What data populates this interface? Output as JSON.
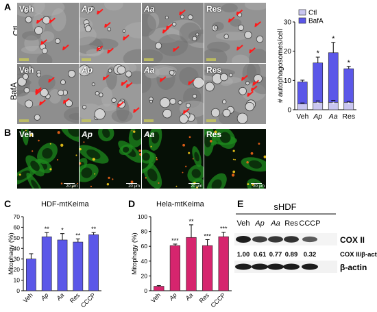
{
  "panels": {
    "A": "A",
    "B": "B",
    "C": "C",
    "D": "D",
    "E": "E"
  },
  "em_grid": {
    "row_labels": [
      "Ctl",
      "BafA"
    ],
    "col_labels": [
      "Veh",
      "Ap",
      "Aa",
      "Res"
    ],
    "col_italic": [
      false,
      true,
      true,
      false
    ]
  },
  "fluor_row": {
    "tiles": [
      "Veh",
      "Ap",
      "Aa",
      "Res"
    ],
    "tile_italic": [
      false,
      true,
      true,
      false
    ],
    "scale_text": "20 μm"
  },
  "colors": {
    "ctl": "#c9c6f0",
    "bafa": "#5b57e8",
    "panel_c": "#5b57e8",
    "panel_d": "#d6256e"
  },
  "chart_data": [
    {
      "type": "bar",
      "id": "A-right",
      "ylabel": "# autophagosomes/cell",
      "categories": [
        "Veh",
        "Ap",
        "Aa",
        "Res"
      ],
      "category_italic": [
        false,
        true,
        true,
        false
      ],
      "ylim": [
        0,
        30
      ],
      "yticks": [
        "0",
        "10",
        "20",
        "30"
      ],
      "legend": [
        "Ctl",
        "BafA"
      ],
      "legend_placement": "top-right",
      "series": [
        {
          "name": "Ctl",
          "values": [
            2.0,
            2.5,
            2.5,
            2.5
          ],
          "errors": [
            0.3,
            0.5,
            0.6,
            0.4
          ]
        },
        {
          "name": "BafA",
          "values": [
            9.5,
            16.0,
            19.5,
            14.0
          ],
          "errors": [
            0.6,
            2.0,
            3.5,
            0.8
          ]
        }
      ],
      "annotations": [
        "*",
        "*",
        "*"
      ],
      "ctl_marks": [
        "*",
        "*",
        "*"
      ]
    },
    {
      "type": "bar",
      "id": "C",
      "title": "HDF-mtKeima",
      "ylabel": "Mitophagy (%)",
      "categories": [
        "Veh",
        "Ap",
        "Aa",
        "Res",
        "CCCP"
      ],
      "category_italic": [
        false,
        true,
        true,
        false,
        false
      ],
      "ylim": [
        0,
        70
      ],
      "yticks": [
        "0",
        "10",
        "20",
        "30",
        "40",
        "50",
        "60",
        "70"
      ],
      "values": [
        30,
        51,
        48,
        46,
        53
      ],
      "errors": [
        5,
        4,
        6,
        3,
        2
      ],
      "annotations": [
        "",
        "**",
        "*",
        "**",
        "**"
      ]
    },
    {
      "type": "bar",
      "id": "D",
      "title": "Hela-mtKeima",
      "ylabel": "Mitophagy (%)",
      "categories": [
        "Veh",
        "Ap",
        "Aa",
        "Res",
        "CCCP"
      ],
      "category_italic": [
        false,
        true,
        true,
        false,
        false
      ],
      "ylim": [
        0,
        100
      ],
      "yticks": [
        "0",
        "20",
        "40",
        "60",
        "80",
        "100"
      ],
      "values": [
        6,
        61,
        72,
        61,
        73
      ],
      "errors": [
        1,
        2,
        17,
        8,
        6
      ],
      "annotations": [
        "",
        "***",
        "**",
        "***",
        "***"
      ]
    }
  ],
  "blot": {
    "title": "sHDF",
    "lanes": [
      "Veh",
      "Ap",
      "Aa",
      "Res",
      "CCCP"
    ],
    "lane_italic": [
      false,
      true,
      true,
      false,
      false
    ],
    "band1_label": "COX II",
    "ratio_label": "COX II/β-actin",
    "ratios": [
      "1.00",
      "0.61",
      "0.77",
      "0.89",
      "0.32"
    ],
    "band1_intensity": [
      1.0,
      0.75,
      0.8,
      0.85,
      0.55
    ],
    "band2_label": "β-actin"
  }
}
